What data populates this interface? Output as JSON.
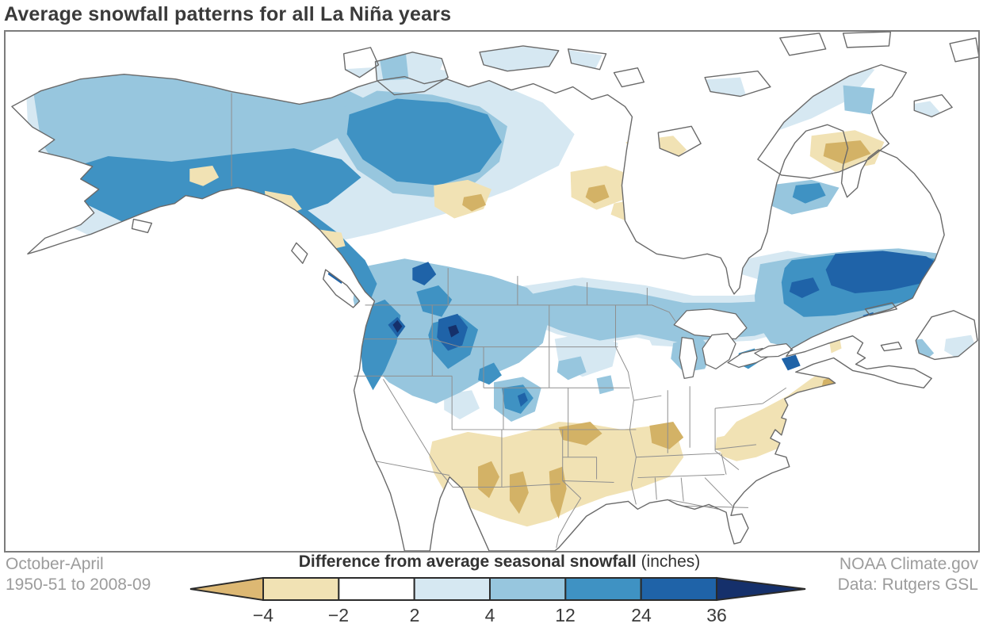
{
  "title": "Average snowfall patterns for all La Niña years",
  "footer": {
    "period_line1": "October-April",
    "period_line2": "1950-51 to 2008-09",
    "credit_line1": "NOAA Climate.gov",
    "credit_line2": "Data: Rutgers GSL"
  },
  "legend": {
    "title_bold": "Difference from average seasonal snowfall",
    "title_normal": " (inches)",
    "ticks": [
      "−4",
      "−2",
      "2",
      "4",
      "12",
      "24",
      "36"
    ],
    "segment_colors": [
      "#f1e2b4",
      "#ffffff",
      "#d6e8f2",
      "#97c6de",
      "#3f92c3",
      "#1f63a8"
    ],
    "arrow_left_color": "#ddb873",
    "arrow_right_color": "#15306b",
    "outline_color": "#2b2b2b"
  },
  "map": {
    "region": "North America",
    "units": "inches",
    "more_snow_colors": [
      "#d6e8f2",
      "#97c6de",
      "#3f92c3",
      "#1f63a8",
      "#15306b"
    ],
    "less_snow_colors": [
      "#f1e2b4",
      "#d3b266",
      "#ddb873"
    ],
    "scale_breaks": [
      -4,
      -2,
      2,
      4,
      12,
      24,
      36
    ]
  },
  "palette": {
    "b1": "#d6e8f2",
    "b2": "#97c6de",
    "b3": "#3f92c3",
    "b4": "#1f63a8",
    "b5": "#15306b",
    "t1": "#f1e2b4",
    "t2": "#d3b266",
    "coast": "#6a6a6a",
    "stateline": "#8f8f8f",
    "frame": "#7c7c7c"
  }
}
